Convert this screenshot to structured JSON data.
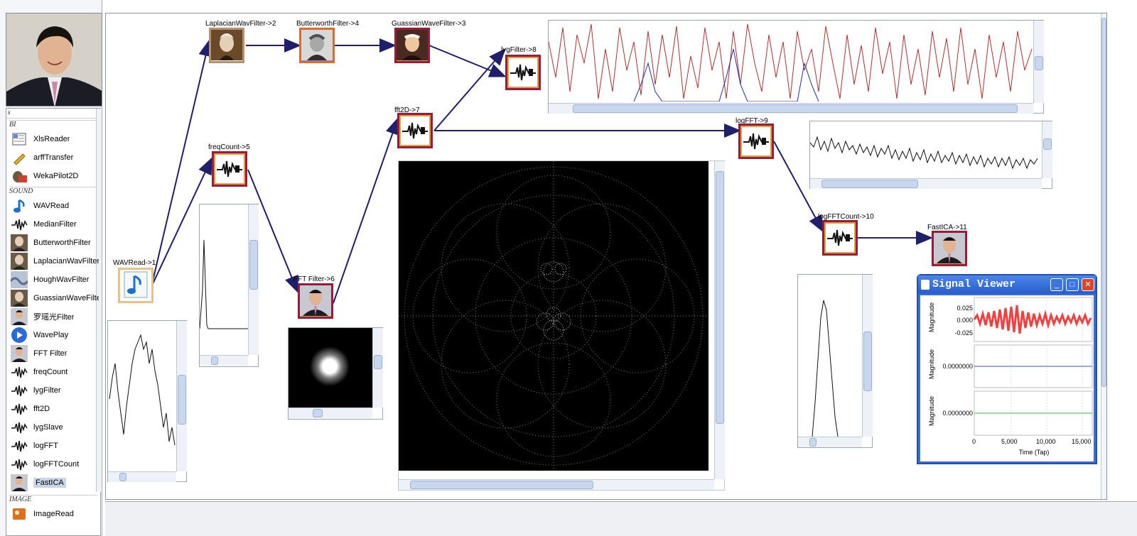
{
  "sidebar": {
    "search_value": "s",
    "categories": [
      {
        "label": "BI"
      },
      {
        "label": "SOUND"
      },
      {
        "label": "IMAGE"
      }
    ],
    "bi_items": [
      {
        "label": "XlsReader",
        "icon": "spreadsheet-icon"
      },
      {
        "label": "arffTransfer",
        "icon": "pencil-icon"
      },
      {
        "label": "WekaPilot2D",
        "icon": "weka-icon"
      }
    ],
    "sound_items": [
      {
        "label": "WAVRead",
        "icon": "music-note-icon"
      },
      {
        "label": "MedianFilter",
        "icon": "waveform-icon"
      },
      {
        "label": "ButterworthFilter",
        "icon": "portrait-icon"
      },
      {
        "label": "LaplacianWavFilter",
        "icon": "portrait-icon"
      },
      {
        "label": "HoughWavFilter",
        "icon": "wave-icon"
      },
      {
        "label": "GuassianWaveFilter",
        "icon": "portrait-icon"
      },
      {
        "label": "罗瑶光Filter",
        "icon": "person-icon"
      },
      {
        "label": "WavePlay",
        "icon": "play-icon"
      },
      {
        "label": "FFT Filter",
        "icon": "person-icon"
      },
      {
        "label": "freqCount",
        "icon": "waveform-icon"
      },
      {
        "label": "lygFilter",
        "icon": "waveform-icon"
      },
      {
        "label": "fft2D",
        "icon": "waveform-icon"
      },
      {
        "label": "lygSlave",
        "icon": "waveform-icon"
      },
      {
        "label": "logFFT",
        "icon": "waveform-icon"
      },
      {
        "label": "logFFTCount",
        "icon": "waveform-icon"
      },
      {
        "label": "FastICA",
        "icon": "person-icon",
        "selected": true
      }
    ],
    "image_items": [
      {
        "label": "ImageRead",
        "icon": "image-icon"
      }
    ]
  },
  "nodes": {
    "wavread": "WAVRead->1",
    "laplacian": "LaplacianWavFilter->2",
    "butterworth": "ButterworthFilter->4",
    "guassian": "GuassianWaveFilter->3",
    "lyg": "lygFilter->8",
    "freqcount": "freqCount->5",
    "fft_filter": "FFT Filter->6",
    "fft2d": "fft2D->7",
    "logfft": "logFFT->9",
    "logfftcount": "logFFTCount->10",
    "fastica": "FastICA->11"
  },
  "viewer": {
    "title": "Signal Viewer",
    "ylabel": "Magnitude",
    "xlabel": "Time (Tap)",
    "plot1_ticks": [
      "0.025",
      "0.000",
      "-0.025"
    ],
    "plot2_tick": "0.0000000",
    "plot3_tick": "0.0000000",
    "x_ticks": [
      "0",
      "5,000",
      "10,000",
      "15,000"
    ]
  },
  "colors": {
    "node_border": "#9b1c3a",
    "node_ring": "#e0a33c",
    "edge": "#1f1f6b",
    "viewer_title": "#2a5ccc",
    "signal_red": "#f04040",
    "signal_blue": "#3050c0",
    "signal_green": "#30c040"
  }
}
